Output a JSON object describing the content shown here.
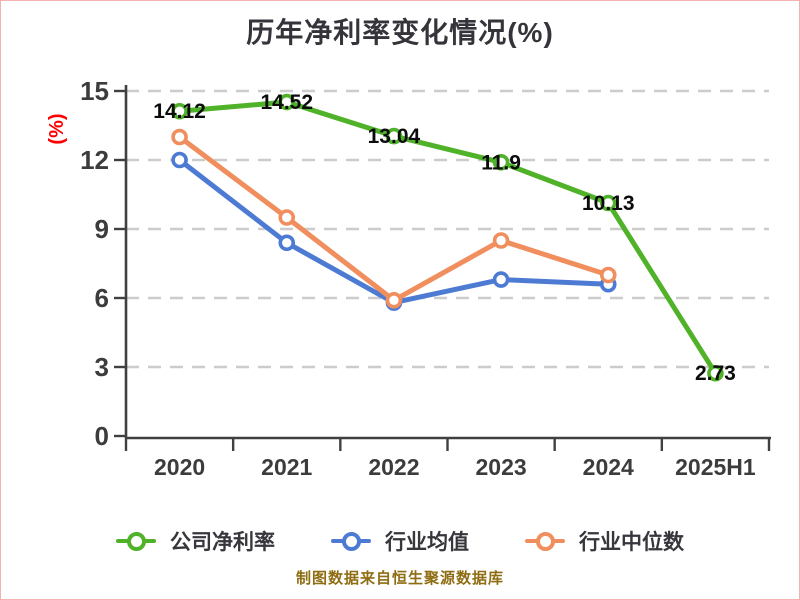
{
  "page": {
    "background_color": "#ffffff",
    "border_color": "#f2b2b2"
  },
  "chart_data": {
    "type": "line",
    "title": "历年净利率变化情况(%)",
    "ylabel": "(%)",
    "ylabel_color": "#ff0000",
    "xlabel": "",
    "categories": [
      "2020",
      "2021",
      "2022",
      "2023",
      "2024",
      "2025H1"
    ],
    "ylim": [
      0,
      15
    ],
    "yticks": [
      0,
      3,
      6,
      9,
      12,
      15
    ],
    "grid": "horizontal-dashed",
    "grid_color": "#cccccc",
    "axis_color": "#404040",
    "legend_position": "bottom",
    "series": [
      {
        "name": "公司净利率",
        "color": "#4fb229",
        "values": [
          14.12,
          14.52,
          13.04,
          11.9,
          10.13,
          2.73
        ],
        "point_labels": [
          "14.12",
          "14.52",
          "13.04",
          "11.9",
          "10.13",
          "2.73"
        ]
      },
      {
        "name": "行业均值",
        "color": "#4d7bd4",
        "values": [
          12.0,
          8.4,
          5.8,
          6.8,
          6.6,
          null
        ],
        "point_labels": null
      },
      {
        "name": "行业中位数",
        "color": "#f08e5e",
        "values": [
          13.0,
          9.5,
          5.9,
          8.5,
          7.0,
          null
        ],
        "point_labels": null
      }
    ],
    "marker_style": "circle-white-fill"
  },
  "footer": {
    "text": "制图数据来自恒生聚源数据库",
    "color": "#8e6d13"
  }
}
